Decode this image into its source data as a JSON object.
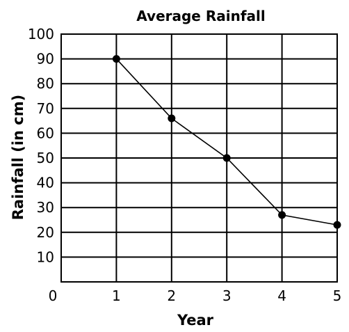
{
  "chart_data": {
    "type": "line",
    "title": "Average Rainfall",
    "xlabel": "Year",
    "ylabel": "Rainfall (in cm)",
    "x": [
      1,
      2,
      3,
      4,
      5
    ],
    "y": [
      90,
      66,
      50,
      27,
      23
    ],
    "xlim": [
      0,
      5
    ],
    "ylim": [
      0,
      100
    ],
    "xticks": [
      1,
      2,
      3,
      4,
      5
    ],
    "yticks": [
      10,
      20,
      30,
      40,
      50,
      60,
      70,
      80,
      90,
      100
    ],
    "origin_label": "0",
    "grid": true,
    "color": "#000000"
  }
}
